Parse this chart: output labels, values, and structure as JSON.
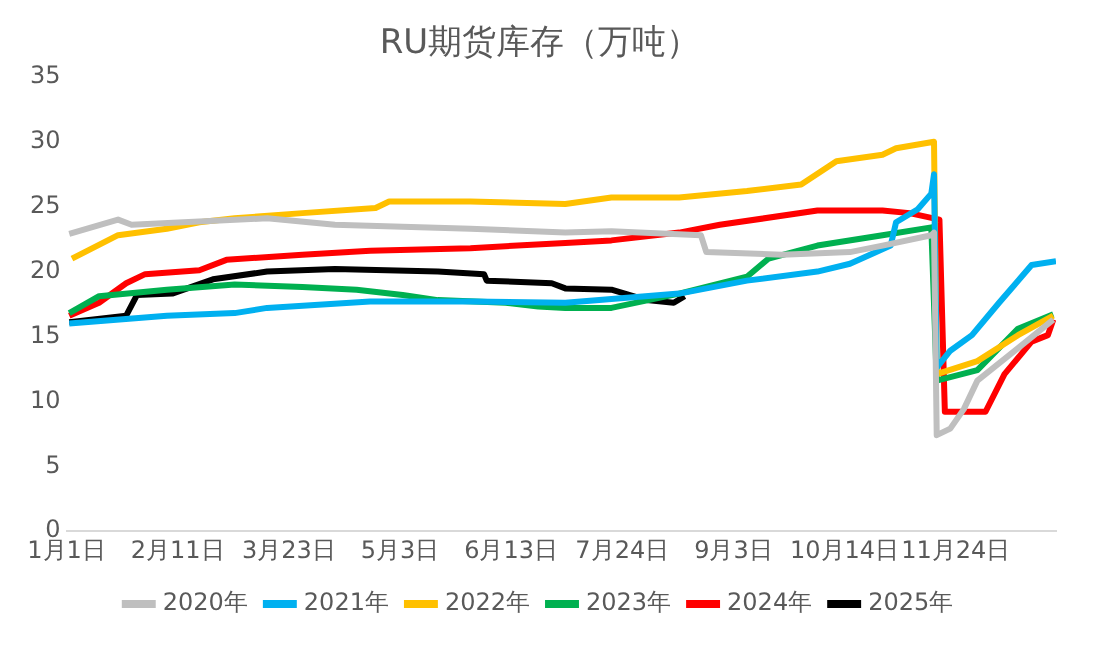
{
  "chart_data": {
    "type": "line",
    "title": "RU期货库存（万吨）",
    "xlim": [
      "--01-01",
      "--12-31"
    ],
    "ylim": [
      0,
      35
    ],
    "yticks": [
      0,
      5,
      10,
      15,
      20,
      25,
      30,
      35
    ],
    "xticks": [
      {
        "value": "--01-01",
        "label": "1月1日"
      },
      {
        "value": "--02-11",
        "label": "2月11日"
      },
      {
        "value": "--03-23",
        "label": "3月23日"
      },
      {
        "value": "--05-03",
        "label": "5月3日"
      },
      {
        "value": "--06-13",
        "label": "6月13日"
      },
      {
        "value": "--07-24",
        "label": "7月24日"
      },
      {
        "value": "--09-03",
        "label": "9月3日"
      },
      {
        "value": "--10-14",
        "label": "10月14日"
      },
      {
        "value": "--11-24",
        "label": "11月24日"
      }
    ],
    "grid": false,
    "legend": "bottom",
    "marker": "none",
    "line_style": "solid",
    "series": [
      {
        "name": "2020年",
        "color": "#bfbfbf",
        "x": [
          "--01-02",
          "--01-20",
          "--01-25",
          "--03-15",
          "--04-09",
          "--05-29",
          "--07-03",
          "--07-20",
          "--08-22",
          "--08-24",
          "--09-21",
          "--10-16",
          "--10-28",
          "--11-15",
          "--11-16",
          "--11-17",
          "--11-22",
          "--11-27",
          "--12-02",
          "--12-17",
          "--12-30"
        ],
        "values": [
          22.9,
          24.0,
          23.6,
          24.1,
          23.6,
          23.3,
          23.0,
          23.1,
          22.8,
          21.5,
          21.3,
          21.5,
          22.0,
          22.8,
          23.0,
          7.4,
          7.9,
          9.4,
          11.6,
          14.1,
          16.3
        ]
      },
      {
        "name": "2021年",
        "color": "#00b0f0",
        "x": [
          "--01-02",
          "--02-07",
          "--03-03",
          "--03-15",
          "--04-22",
          "--05-29",
          "--07-03",
          "--08-14",
          "--09-08",
          "--10-04",
          "--10-16",
          "--10-31",
          "--11-02",
          "--11-10",
          "--11-15",
          "--11-16",
          "--11-17",
          "--11-22",
          "--11-30",
          "--12-10",
          "--12-22",
          "--12-31"
        ],
        "values": [
          16.0,
          16.6,
          16.8,
          17.2,
          17.7,
          17.7,
          17.6,
          18.3,
          19.3,
          20.0,
          20.6,
          22.0,
          23.8,
          24.8,
          26.0,
          27.5,
          12.6,
          13.9,
          15.1,
          17.6,
          20.5,
          20.8
        ]
      },
      {
        "name": "2022年",
        "color": "#ffc000",
        "x": [
          "--01-03",
          "--01-20",
          "--02-07",
          "--02-19",
          "--03-03",
          "--03-28",
          "--04-24",
          "--04-29",
          "--05-29",
          "--07-03",
          "--07-20",
          "--08-14",
          "--09-08",
          "--09-28",
          "--10-11",
          "--10-28",
          "--11-02",
          "--11-16",
          "--11-17",
          "--12-02",
          "--12-17",
          "--12-30"
        ],
        "values": [
          21.0,
          22.8,
          23.3,
          23.8,
          24.1,
          24.5,
          24.9,
          25.4,
          25.4,
          25.2,
          25.7,
          25.7,
          26.2,
          26.7,
          28.5,
          29.0,
          29.5,
          30.0,
          12.1,
          13.1,
          15.1,
          16.6
        ]
      },
      {
        "name": "2023年",
        "color": "#00b050",
        "x": [
          "--01-02",
          "--01-13",
          "--02-07",
          "--03-03",
          "--03-28",
          "--04-17",
          "--05-04",
          "--05-17",
          "--06-11",
          "--06-23",
          "--07-03",
          "--07-20",
          "--08-14",
          "--09-08",
          "--09-16",
          "--10-04",
          "--10-28",
          "--11-15",
          "--11-17",
          "--12-02",
          "--12-17",
          "--12-30"
        ],
        "values": [
          16.8,
          18.1,
          18.6,
          19.0,
          18.8,
          18.6,
          18.2,
          17.8,
          17.6,
          17.3,
          17.2,
          17.2,
          18.3,
          19.6,
          21.0,
          22.0,
          22.8,
          23.4,
          11.6,
          12.4,
          15.6,
          16.7
        ]
      },
      {
        "name": "2024年",
        "color": "#ff0000",
        "x": [
          "--01-02",
          "--01-13",
          "--01-23",
          "--01-30",
          "--02-19",
          "--02-29",
          "--03-28",
          "--04-22",
          "--05-29",
          "--07-03",
          "--07-20",
          "--08-14",
          "--08-29",
          "--10-04",
          "--10-28",
          "--11-07",
          "--11-18",
          "--11-20",
          "--12-05",
          "--12-12",
          "--12-22",
          "--12-28",
          "--12-30"
        ],
        "values": [
          16.6,
          17.6,
          19.1,
          19.8,
          20.1,
          20.9,
          21.3,
          21.6,
          21.8,
          22.2,
          22.4,
          23.0,
          23.6,
          24.7,
          24.7,
          24.5,
          24.0,
          9.2,
          9.2,
          12.1,
          14.6,
          15.1,
          16.3
        ]
      },
      {
        "name": "2025年",
        "color": "#000000",
        "x": [
          "--01-02",
          "--01-23",
          "--01-27",
          "--02-09",
          "--02-24",
          "--03-15",
          "--04-09",
          "--05-17",
          "--06-03",
          "--06-04",
          "--06-28",
          "--07-03",
          "--07-20",
          "--08-02",
          "--08-12",
          "--08-16"
        ],
        "values": [
          16.1,
          16.6,
          18.2,
          18.3,
          19.4,
          20.0,
          20.2,
          20.0,
          19.8,
          19.3,
          19.1,
          18.7,
          18.6,
          17.8,
          17.6,
          18.1
        ]
      }
    ]
  }
}
